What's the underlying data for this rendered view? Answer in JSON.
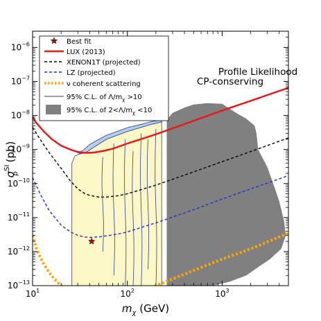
{
  "chart_data": {
    "type": "line",
    "title": "",
    "xlabel": "m",
    "xlabel_sub": "χ",
    "xlabel_unit": " (GeV)",
    "ylabel": "σ",
    "ylabel_sup": "SI",
    "ylabel_sub": "p",
    "ylabel_unit": " (pb)",
    "xscale": "log",
    "yscale": "log",
    "xlim": [
      10,
      5000
    ],
    "ylim": [
      1e-13,
      3e-06
    ],
    "x_ticks": [
      {
        "value": 10,
        "base": "10",
        "exp": "1"
      },
      {
        "value": 100,
        "base": "10",
        "exp": "2"
      },
      {
        "value": 1000,
        "base": "10",
        "exp": "3"
      }
    ],
    "y_ticks": [
      {
        "value": 1e-13,
        "base": "10",
        "exp": "−13"
      },
      {
        "value": 1e-12,
        "base": "10",
        "exp": "−12"
      },
      {
        "value": 1e-11,
        "base": "10",
        "exp": "−11"
      },
      {
        "value": 1e-10,
        "base": "10",
        "exp": "−10"
      },
      {
        "value": 1e-09,
        "base": "10",
        "exp": "−9"
      },
      {
        "value": 1e-08,
        "base": "10",
        "exp": "−8"
      },
      {
        "value": 1e-07,
        "base": "10",
        "exp": "−7"
      },
      {
        "value": 1e-06,
        "base": "10",
        "exp": "−6"
      }
    ],
    "annotation": [
      "Profile Likelihood",
      "CP-conserving"
    ],
    "legend_position": "top-left",
    "legend": [
      {
        "label": "Best fit",
        "marker": "star"
      },
      {
        "label": "LUX (2013)",
        "style": "solid-red"
      },
      {
        "label": "XENON1T (projected)",
        "style": "dashed-black"
      },
      {
        "label": "LZ (projected)",
        "style": "dashed-blue"
      },
      {
        "label": "ν coherent scattering",
        "style": "dotted-orange"
      },
      {
        "label": "95% C.L. of Λ/m",
        "label_sub": "χ",
        "label_tail": " >10",
        "style": "thin-line"
      },
      {
        "label": "95% C.L. of 2<Λ/m",
        "label_sub": "χ",
        "label_tail": " <10",
        "style": "gray-patch"
      }
    ],
    "series": [
      {
        "name": "LUX (2013)",
        "color": "#e41a1c",
        "style": "solid",
        "x": [
          10,
          11,
          13,
          16,
          20,
          25,
          30,
          35,
          40,
          45,
          55,
          70,
          100,
          200,
          500,
          1000,
          2000,
          5000
        ],
        "y": [
          9e-09,
          6e-09,
          3.5e-09,
          2e-09,
          1.3e-09,
          1e-09,
          8.5e-10,
          8e-10,
          8e-10,
          8.2e-10,
          9e-10,
          1.05e-09,
          1.5e-09,
          2.8e-09,
          7e-09,
          1.4e-08,
          2.7e-08,
          6.5e-08
        ]
      },
      {
        "name": "XENON1T (projected)",
        "color": "#000000",
        "style": "dashed",
        "x": [
          10,
          12,
          15,
          20,
          25,
          30,
          35,
          40,
          50,
          60,
          80,
          100,
          200,
          500,
          1000,
          2000,
          5000
        ],
        "y": [
          4.5e-09,
          2e-09,
          8e-10,
          2.8e-10,
          1.2e-10,
          7e-11,
          5.2e-11,
          4.5e-11,
          4e-11,
          4e-11,
          4.4e-11,
          5e-11,
          9e-11,
          2.2e-10,
          4.4e-10,
          8.7e-10,
          2.2e-09
        ]
      },
      {
        "name": "LZ (projected)",
        "color": "#1f2fd1",
        "style": "dashed",
        "x": [
          10,
          12,
          15,
          20,
          25,
          30,
          35,
          40,
          50,
          60,
          80,
          100,
          200,
          500,
          1000,
          2000,
          5000
        ],
        "y": [
          1.5e-10,
          5e-11,
          1.6e-11,
          6e-12,
          3.8e-12,
          3e-12,
          2.7e-12,
          2.6e-12,
          2.7e-12,
          2.9e-12,
          3.3e-12,
          3.8e-12,
          7e-12,
          1.7e-11,
          3.5e-11,
          7e-11,
          1.7e-10
        ]
      },
      {
        "name": "ν coherent scattering",
        "color": "#ffa500",
        "style": "dotted",
        "x": [
          10,
          11,
          12,
          13,
          14,
          15,
          16,
          17,
          18,
          19,
          20,
          50,
          100,
          200,
          500,
          1000,
          2000,
          5000
        ],
        "y": [
          3e-12,
          1.2e-12,
          7e-13,
          4.6e-13,
          3.2e-13,
          2.4e-13,
          1.9e-13,
          1.6e-13,
          1.3e-13,
          1.15e-13,
          1e-13,
          3.2e-14,
          5e-14,
          1e-13,
          2.8e-13,
          6e-13,
          1.2e-12,
          3.5e-12
        ]
      }
    ],
    "best_fit": {
      "x": 42,
      "y": 2e-12
    },
    "region_light_yellow": {
      "name": "95% C.L. of Λ/mχ >10",
      "fill": "#fbf7c6",
      "outline": "#2b3f9a",
      "x": [
        26,
        26,
        28,
        32,
        36,
        45,
        60,
        80,
        100,
        140,
        180,
        230,
        230,
        180,
        120,
        60,
        40,
        30,
        26
      ],
      "y": [
        1e-13,
        4e-10,
        6.5e-10,
        7.5e-10,
        8e-10,
        1.2e-09,
        2e-09,
        2.7e-09,
        3.4e-09,
        4.5e-09,
        5.5e-09,
        6.5e-09,
        1e-13,
        1e-13,
        1e-13,
        1e-13,
        1e-13,
        1e-13,
        1e-13
      ]
    },
    "region_light_blue": {
      "fill": "#b8cde6",
      "outline": "#2b3f9a",
      "x": [
        30,
        34,
        40,
        50,
        60,
        80,
        100,
        140,
        180,
        230,
        230,
        180,
        140,
        100,
        80,
        60,
        45,
        36,
        32
      ],
      "y": [
        8e-10,
        9.5e-10,
        1.4e-09,
        2e-09,
        2.6e-09,
        3.5e-09,
        4.4e-09,
        5.5e-09,
        6.6e-09,
        7.5e-09,
        6.5e-09,
        5.5e-09,
        4.5e-09,
        3.4e-09,
        2.7e-09,
        2e-09,
        1.2e-09,
        8e-10,
        7.5e-10
      ]
    },
    "region_gray": {
      "name": "95% C.L. of 2<Λ/mχ <10",
      "fill": "#808080",
      "x": [
        260,
        300,
        400,
        500,
        700,
        1000,
        1400,
        1800,
        2200,
        2300,
        2400,
        3000,
        3500,
        4000,
        4500,
        4700,
        4200,
        3200,
        2400,
        1800,
        1200,
        800,
        500,
        300,
        260
      ],
      "y": [
        7.5e-09,
        1.2e-08,
        1.7e-08,
        2.1e-08,
        2.3e-08,
        2.2e-08,
        1.2e-08,
        8e-09,
        5e-09,
        3e-09,
        1e-09,
        3e-10,
        9e-11,
        3e-11,
        8e-12,
        3e-12,
        1.2e-12,
        6e-13,
        3.5e-13,
        2e-13,
        1.3e-13,
        1e-13,
        1e-13,
        1e-13,
        1e-13
      ]
    },
    "grid": false
  }
}
